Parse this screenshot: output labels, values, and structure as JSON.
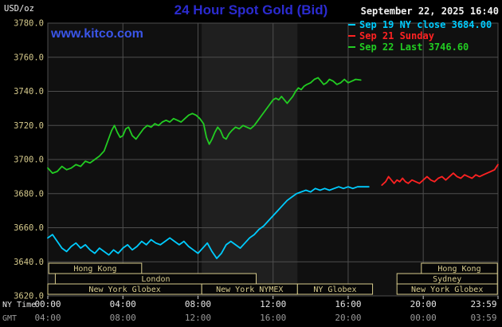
{
  "header": {
    "unit_label": "USD/oz",
    "title": "24 Hour Spot Gold (Bid)",
    "datetime": "September 22, 2025 16:40",
    "watermark": "www.kitco.com",
    "legend": [
      {
        "label": "Sep 19 NY close 3684.00",
        "color": "#00ccff"
      },
      {
        "label": "Sep 21 Sunday",
        "color": "#ff2222"
      },
      {
        "label": "Sep 22 Last 3746.60",
        "color": "#22cc22"
      }
    ]
  },
  "axes": {
    "x_row1_label": "NY Time",
    "x_row2_label": "GMT",
    "x_row1_ticks": [
      "00:00",
      "04:00",
      "08:00",
      "12:00",
      "16:00",
      "20:00",
      "23:59"
    ],
    "x_row2_ticks": [
      "04:00",
      "08:00",
      "12:00",
      "16:00",
      "20:00",
      "00:00",
      "03:59"
    ],
    "y_ticks": [
      "3780.0",
      "3760.0",
      "3740.0",
      "3720.0",
      "3700.0",
      "3680.0",
      "3660.0",
      "3640.0",
      "3620.0"
    ]
  },
  "colors": {
    "title_blue": "#2b2bd0",
    "link_blue": "#3a55e8",
    "white": "#f0f0f0",
    "tan": "#d6ca8c",
    "grid": "#4e4e4e",
    "plot_bg": "#101010",
    "band_bg": "#1f1f1f",
    "session_fill": "#060606",
    "axis_secondary": "#9a9a9a"
  },
  "chart_data": {
    "type": "line",
    "title": "24 Hour Spot Gold (Bid)",
    "ylabel": "USD/oz",
    "xlabel": "NY Time / GMT",
    "xlim": [
      0,
      23.9833
    ],
    "ylim": [
      3620,
      3780
    ],
    "y_gridstep": 20,
    "x_gridlines": [
      0,
      4,
      8,
      12,
      16,
      20,
      23.9833
    ],
    "nymex_band": {
      "start": 8.2,
      "end": 13.3
    },
    "series": [
      {
        "id": "sep19",
        "name": "Sep 19 NY close 3684.00",
        "color": "#00ccff",
        "points": [
          [
            0,
            3654
          ],
          [
            0.25,
            3656
          ],
          [
            0.5,
            3652
          ],
          [
            0.75,
            3648
          ],
          [
            1,
            3646
          ],
          [
            1.25,
            3649
          ],
          [
            1.5,
            3651
          ],
          [
            1.75,
            3648
          ],
          [
            2,
            3650
          ],
          [
            2.25,
            3647
          ],
          [
            2.5,
            3645
          ],
          [
            2.75,
            3648
          ],
          [
            3,
            3646
          ],
          [
            3.25,
            3644
          ],
          [
            3.5,
            3647
          ],
          [
            3.75,
            3645
          ],
          [
            4,
            3648
          ],
          [
            4.25,
            3650
          ],
          [
            4.5,
            3647
          ],
          [
            4.75,
            3649
          ],
          [
            5,
            3652
          ],
          [
            5.25,
            3650
          ],
          [
            5.5,
            3653
          ],
          [
            5.75,
            3651
          ],
          [
            6,
            3650
          ],
          [
            6.25,
            3652
          ],
          [
            6.5,
            3654
          ],
          [
            6.75,
            3652
          ],
          [
            7,
            3650
          ],
          [
            7.25,
            3652
          ],
          [
            7.5,
            3649
          ],
          [
            7.75,
            3647
          ],
          [
            8,
            3645
          ],
          [
            8.25,
            3648
          ],
          [
            8.5,
            3651
          ],
          [
            8.75,
            3646
          ],
          [
            9,
            3642
          ],
          [
            9.25,
            3645
          ],
          [
            9.5,
            3650
          ],
          [
            9.75,
            3652
          ],
          [
            10,
            3650
          ],
          [
            10.25,
            3648
          ],
          [
            10.5,
            3651
          ],
          [
            10.75,
            3654
          ],
          [
            11,
            3656
          ],
          [
            11.25,
            3659
          ],
          [
            11.5,
            3661
          ],
          [
            11.75,
            3664
          ],
          [
            12,
            3667
          ],
          [
            12.25,
            3670
          ],
          [
            12.5,
            3673
          ],
          [
            12.75,
            3676
          ],
          [
            13,
            3678
          ],
          [
            13.25,
            3680
          ],
          [
            13.5,
            3681
          ],
          [
            13.75,
            3682
          ],
          [
            14,
            3681
          ],
          [
            14.25,
            3683
          ],
          [
            14.5,
            3682
          ],
          [
            14.75,
            3683
          ],
          [
            15,
            3682
          ],
          [
            15.25,
            3683
          ],
          [
            15.5,
            3684
          ],
          [
            15.75,
            3683
          ],
          [
            16,
            3684
          ],
          [
            16.25,
            3683
          ],
          [
            16.5,
            3684
          ],
          [
            16.75,
            3684
          ],
          [
            17.1,
            3684
          ]
        ]
      },
      {
        "id": "sep21",
        "name": "Sep 21 Sunday",
        "color": "#ff2222",
        "points": [
          [
            17.8,
            3685
          ],
          [
            18,
            3687
          ],
          [
            18.15,
            3690
          ],
          [
            18.3,
            3688
          ],
          [
            18.45,
            3686
          ],
          [
            18.6,
            3688
          ],
          [
            18.75,
            3687
          ],
          [
            18.9,
            3689
          ],
          [
            19.05,
            3687
          ],
          [
            19.2,
            3686
          ],
          [
            19.4,
            3688
          ],
          [
            19.6,
            3687
          ],
          [
            19.8,
            3686
          ],
          [
            20,
            3688
          ],
          [
            20.2,
            3690
          ],
          [
            20.4,
            3688
          ],
          [
            20.6,
            3687
          ],
          [
            20.8,
            3689
          ],
          [
            21,
            3690
          ],
          [
            21.2,
            3688
          ],
          [
            21.4,
            3690
          ],
          [
            21.6,
            3692
          ],
          [
            21.8,
            3690
          ],
          [
            22,
            3689
          ],
          [
            22.2,
            3691
          ],
          [
            22.4,
            3690
          ],
          [
            22.6,
            3689
          ],
          [
            22.8,
            3691
          ],
          [
            23,
            3690
          ],
          [
            23.2,
            3691
          ],
          [
            23.4,
            3692
          ],
          [
            23.6,
            3693
          ],
          [
            23.8,
            3694
          ],
          [
            23.98,
            3697
          ]
        ]
      },
      {
        "id": "sep22",
        "name": "Sep 22 Last 3746.60",
        "color": "#22cc22",
        "points": [
          [
            0,
            3695
          ],
          [
            0.25,
            3692
          ],
          [
            0.5,
            3693
          ],
          [
            0.75,
            3696
          ],
          [
            1,
            3694
          ],
          [
            1.25,
            3695
          ],
          [
            1.5,
            3697
          ],
          [
            1.75,
            3696
          ],
          [
            2,
            3699
          ],
          [
            2.25,
            3698
          ],
          [
            2.5,
            3700
          ],
          [
            2.75,
            3702
          ],
          [
            3,
            3705
          ],
          [
            3.2,
            3711
          ],
          [
            3.4,
            3717
          ],
          [
            3.55,
            3720
          ],
          [
            3.7,
            3716
          ],
          [
            3.85,
            3713
          ],
          [
            4,
            3714
          ],
          [
            4.15,
            3718
          ],
          [
            4.3,
            3719
          ],
          [
            4.5,
            3714
          ],
          [
            4.7,
            3712
          ],
          [
            4.9,
            3715
          ],
          [
            5.1,
            3718
          ],
          [
            5.3,
            3720
          ],
          [
            5.5,
            3719
          ],
          [
            5.7,
            3721
          ],
          [
            5.9,
            3720
          ],
          [
            6.1,
            3722
          ],
          [
            6.3,
            3723
          ],
          [
            6.5,
            3722
          ],
          [
            6.7,
            3724
          ],
          [
            6.9,
            3723
          ],
          [
            7.1,
            3722
          ],
          [
            7.3,
            3724
          ],
          [
            7.5,
            3726
          ],
          [
            7.7,
            3727
          ],
          [
            7.9,
            3726
          ],
          [
            8.1,
            3724
          ],
          [
            8.3,
            3721
          ],
          [
            8.45,
            3713
          ],
          [
            8.6,
            3709
          ],
          [
            8.75,
            3712
          ],
          [
            8.9,
            3716
          ],
          [
            9.05,
            3719
          ],
          [
            9.2,
            3717
          ],
          [
            9.35,
            3713
          ],
          [
            9.5,
            3712
          ],
          [
            9.65,
            3715
          ],
          [
            9.8,
            3717
          ],
          [
            10,
            3719
          ],
          [
            10.2,
            3718
          ],
          [
            10.4,
            3720
          ],
          [
            10.6,
            3719
          ],
          [
            10.8,
            3718
          ],
          [
            11,
            3720
          ],
          [
            11.2,
            3723
          ],
          [
            11.4,
            3726
          ],
          [
            11.6,
            3729
          ],
          [
            11.8,
            3732
          ],
          [
            12,
            3735
          ],
          [
            12.15,
            3736
          ],
          [
            12.3,
            3735
          ],
          [
            12.45,
            3737
          ],
          [
            12.6,
            3735
          ],
          [
            12.75,
            3733
          ],
          [
            12.9,
            3735
          ],
          [
            13.05,
            3737
          ],
          [
            13.2,
            3740
          ],
          [
            13.35,
            3742
          ],
          [
            13.5,
            3741
          ],
          [
            13.65,
            3743
          ],
          [
            13.8,
            3744
          ],
          [
            14,
            3745
          ],
          [
            14.2,
            3747
          ],
          [
            14.4,
            3748
          ],
          [
            14.55,
            3746
          ],
          [
            14.7,
            3744
          ],
          [
            14.85,
            3745
          ],
          [
            15,
            3747
          ],
          [
            15.2,
            3746
          ],
          [
            15.4,
            3744
          ],
          [
            15.6,
            3745
          ],
          [
            15.8,
            3747
          ],
          [
            16,
            3745
          ],
          [
            16.2,
            3746
          ],
          [
            16.4,
            3747
          ],
          [
            16.67,
            3746.6
          ]
        ]
      }
    ],
    "sessions": [
      {
        "row": 0,
        "label": "Hong Kong",
        "start": 0.05,
        "end": 5.0
      },
      {
        "row": 0,
        "label": "Hong Kong",
        "start": 19.9,
        "end": 23.95
      },
      {
        "row": 1,
        "label": "London",
        "start": 0.4,
        "end": 11.1
      },
      {
        "row": 1,
        "label": "Sydney",
        "start": 18.6,
        "end": 23.95
      },
      {
        "row": 2,
        "label": "New York Globex",
        "start": 0.0,
        "end": 8.2
      },
      {
        "row": 2,
        "label": "New York NYMEX",
        "start": 8.2,
        "end": 13.3
      },
      {
        "row": 2,
        "label": "NY Globex",
        "start": 13.3,
        "end": 17.3
      },
      {
        "row": 2,
        "label": "New York Globex",
        "start": 18.6,
        "end": 23.95
      }
    ]
  }
}
